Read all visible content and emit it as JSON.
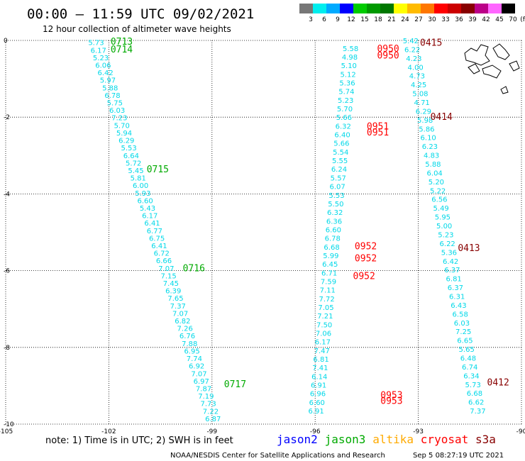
{
  "header": {
    "title": "00:00 – 11:59 UTC 09/02/2021",
    "subtitle": "12 hour collection of altimeter wave heights"
  },
  "colorbar": {
    "labels": [
      "3",
      "6",
      "9",
      "12",
      "15",
      "18",
      "21",
      "24",
      "27",
      "30",
      "33",
      "36",
      "39",
      "42",
      "45",
      "70",
      "(ft)"
    ],
    "colors": [
      "#777777",
      "#00eeee",
      "#00aaff",
      "#0000ff",
      "#00cc00",
      "#009900",
      "#007700",
      "#ffff00",
      "#ffbb00",
      "#ff7700",
      "#ff0000",
      "#cc0000",
      "#880000",
      "#bb0088",
      "#ff66ff",
      "#000000"
    ]
  },
  "footer": {
    "note": "note:  1) Time is in UTC;  2) SWH is in feet",
    "satellites": [
      {
        "name": "jason2",
        "color": "#0000ff"
      },
      {
        "name": "jason3",
        "color": "#00aa00"
      },
      {
        "name": "altika",
        "color": "#ffaa00"
      },
      {
        "name": "cryosat",
        "color": "#ff0000"
      },
      {
        "name": "s3a",
        "color": "#880000"
      }
    ],
    "credit": "NOAA/NESDIS Center for Satellite Applications and Research",
    "timestamp": "Sep  5 08:27:19 UTC 2021"
  },
  "chart_data": {
    "type": "scatter",
    "xlim": [
      -105,
      -90
    ],
    "ylim": [
      -10,
      0
    ],
    "xticks": [
      -105,
      -102,
      -99,
      -96,
      -93,
      -90
    ],
    "yticks": [
      0,
      -2,
      -4,
      -6,
      -8,
      -10
    ],
    "grid": true,
    "value_color": "#00d8e8",
    "tracks": [
      {
        "color": "#00aa00",
        "values": [
          "5.73",
          "6.17",
          "5.23",
          "6.06",
          "6.42",
          "5.97",
          "5.88",
          "6.78",
          "5.75",
          "6.03",
          "7.23",
          "5.70",
          "5.94",
          "6.29",
          "5.53",
          "6.64",
          "5.72",
          "5.45",
          "5.81",
          "6.00",
          "5.93",
          "6.60",
          "5.43",
          "6.17",
          "6.41",
          "6.77",
          "6.75",
          "6.41",
          "6.72",
          "6.66",
          "7.07",
          "7.15",
          "7.45",
          "6.39",
          "7.65",
          "7.37",
          "7.07",
          "6.82",
          "7.26",
          "6.76",
          "7.88",
          "6.95",
          "7.74",
          "6.92",
          "7.07",
          "6.97",
          "7.87",
          "7.19",
          "7.73",
          "7.22",
          "6.87"
        ],
        "start": [
          -102.6,
          -0.05
        ],
        "end": [
          -99.2,
          -9.85
        ],
        "labels": [
          {
            "text": "0713",
            "lon": -101.95,
            "lat": -0.02
          },
          {
            "text": "0714",
            "lon": -101.95,
            "lat": -0.22
          },
          {
            "text": "0715",
            "lon": -100.9,
            "lat": -3.35
          },
          {
            "text": "0716",
            "lon": -99.85,
            "lat": -5.92
          },
          {
            "text": "0717",
            "lon": -98.65,
            "lat": -8.95
          }
        ]
      },
      {
        "color": "#ff0000",
        "values": [
          "5.58",
          "4.98",
          "5.10",
          "5.12",
          "5.36",
          "5.74",
          "5.23",
          "5.70",
          "5.66",
          "6.32",
          "6.40",
          "5.66",
          "5.54",
          "5.55",
          "6.24",
          "5.57",
          "6.07",
          "5.53",
          "5.50",
          "6.32",
          "6.36",
          "6.60",
          "6.78",
          "6.68",
          "5.99",
          "6.45",
          "6.71",
          "7.59",
          "7.11",
          "7.72",
          "7.05",
          "7.21",
          "7.50",
          "7.06",
          "6.17",
          "7.47",
          "6.81",
          "7.41",
          "6.14",
          "6.91",
          "6.96",
          "6.60",
          "6.91"
        ],
        "start": [
          -95.2,
          -0.2
        ],
        "end": [
          -96.2,
          -9.65
        ],
        "labels": [
          {
            "text": "0950",
            "lon": -94.2,
            "lat": -0.2
          },
          {
            "text": "0950",
            "lon": -94.2,
            "lat": -0.38
          },
          {
            "text": "0951",
            "lon": -94.5,
            "lat": -2.23
          },
          {
            "text": "0951",
            "lon": -94.5,
            "lat": -2.38
          },
          {
            "text": "0952",
            "lon": -94.85,
            "lat": -5.35
          },
          {
            "text": "0952",
            "lon": -94.85,
            "lat": -5.67
          },
          {
            "text": "0952",
            "lon": -94.9,
            "lat": -6.13
          },
          {
            "text": "0953",
            "lon": -94.1,
            "lat": -9.23
          },
          {
            "text": "0953",
            "lon": -94.1,
            "lat": -9.38
          }
        ]
      },
      {
        "color": "#880000",
        "values": [
          "5.42",
          "6.22",
          "4.23",
          "4.00",
          "4.73",
          "4.25",
          "5.08",
          "4.71",
          "6.29",
          "5.98",
          "5.86",
          "6.10",
          "6.23",
          "4.83",
          "5.88",
          "6.04",
          "5.20",
          "5.22",
          "6.56",
          "5.49",
          "5.95",
          "5.00",
          "5.23",
          "6.22",
          "5.36",
          "6.42",
          "6.37",
          "6.81",
          "6.37",
          "6.31",
          "6.43",
          "6.58",
          "6.03",
          "7.25",
          "6.65",
          "5.65",
          "6.48",
          "6.74",
          "6.34",
          "5.73",
          "6.68",
          "6.62",
          "7.37"
        ],
        "start": [
          -93.45,
          -0.0
        ],
        "end": [
          -91.5,
          -9.65
        ],
        "labels": [
          {
            "text": "0415",
            "lon": -92.95,
            "lat": -0.05
          },
          {
            "text": "0414",
            "lon": -92.65,
            "lat": -1.98
          },
          {
            "text": "0413",
            "lon": -91.85,
            "lat": -5.4
          },
          {
            "text": "0412",
            "lon": -91.0,
            "lat": -8.9
          }
        ]
      }
    ]
  }
}
